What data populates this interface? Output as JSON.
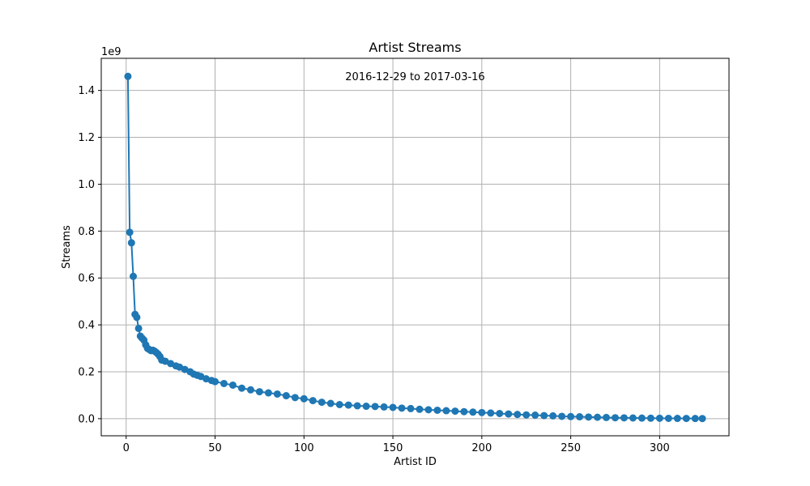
{
  "chart_data": {
    "type": "line",
    "title": "Artist Streams",
    "annotation": "2016-12-29 to 2017-03-16",
    "xlabel": "Artist ID",
    "ylabel": "Streams",
    "y_offset_label": "1e9",
    "xlim": [
      -14,
      339
    ],
    "ylim": [
      -0.073,
      1.537
    ],
    "x_ticks": [
      0,
      50,
      100,
      150,
      200,
      250,
      300
    ],
    "y_ticks": [
      0.0,
      0.2,
      0.4,
      0.6,
      0.8,
      1.0,
      1.2,
      1.4
    ],
    "y_tick_labels": [
      "0.0",
      "0.2",
      "0.4",
      "0.6",
      "0.8",
      "1.0",
      "1.2",
      "1.4"
    ],
    "grid": true,
    "marker": "circle",
    "color": "#1f77b4",
    "series": [
      {
        "x": [
          1,
          2,
          3,
          4,
          5,
          6,
          7,
          8,
          9,
          10,
          11,
          12,
          13,
          14,
          15,
          16,
          17,
          18,
          19,
          20,
          22,
          25,
          28,
          30,
          33,
          36,
          38,
          40,
          42,
          45,
          48,
          50,
          55,
          60,
          65,
          70,
          75,
          80,
          85,
          90,
          95,
          100,
          105,
          110,
          115,
          120,
          125,
          130,
          135,
          140,
          145,
          150,
          155,
          160,
          165,
          170,
          175,
          180,
          185,
          190,
          195,
          200,
          205,
          210,
          215,
          220,
          225,
          230,
          235,
          240,
          245,
          250,
          255,
          260,
          265,
          270,
          275,
          280,
          285,
          290,
          295,
          300,
          305,
          310,
          315,
          320,
          324
        ],
        "y": [
          1.46,
          0.795,
          0.75,
          0.607,
          0.445,
          0.432,
          0.385,
          0.352,
          0.343,
          0.335,
          0.315,
          0.3,
          0.295,
          0.29,
          0.292,
          0.288,
          0.282,
          0.275,
          0.265,
          0.25,
          0.245,
          0.235,
          0.225,
          0.22,
          0.21,
          0.2,
          0.19,
          0.185,
          0.18,
          0.17,
          0.163,
          0.158,
          0.15,
          0.143,
          0.13,
          0.123,
          0.115,
          0.11,
          0.105,
          0.098,
          0.09,
          0.085,
          0.077,
          0.07,
          0.065,
          0.06,
          0.058,
          0.055,
          0.053,
          0.052,
          0.05,
          0.048,
          0.045,
          0.043,
          0.04,
          0.038,
          0.036,
          0.034,
          0.032,
          0.03,
          0.028,
          0.026,
          0.024,
          0.022,
          0.02,
          0.018,
          0.016,
          0.015,
          0.013,
          0.012,
          0.01,
          0.009,
          0.008,
          0.007,
          0.006,
          0.005,
          0.004,
          0.0035,
          0.003,
          0.0025,
          0.002,
          0.0018,
          0.0015,
          0.0012,
          0.001,
          0.0008,
          0.0005
        ]
      }
    ]
  }
}
